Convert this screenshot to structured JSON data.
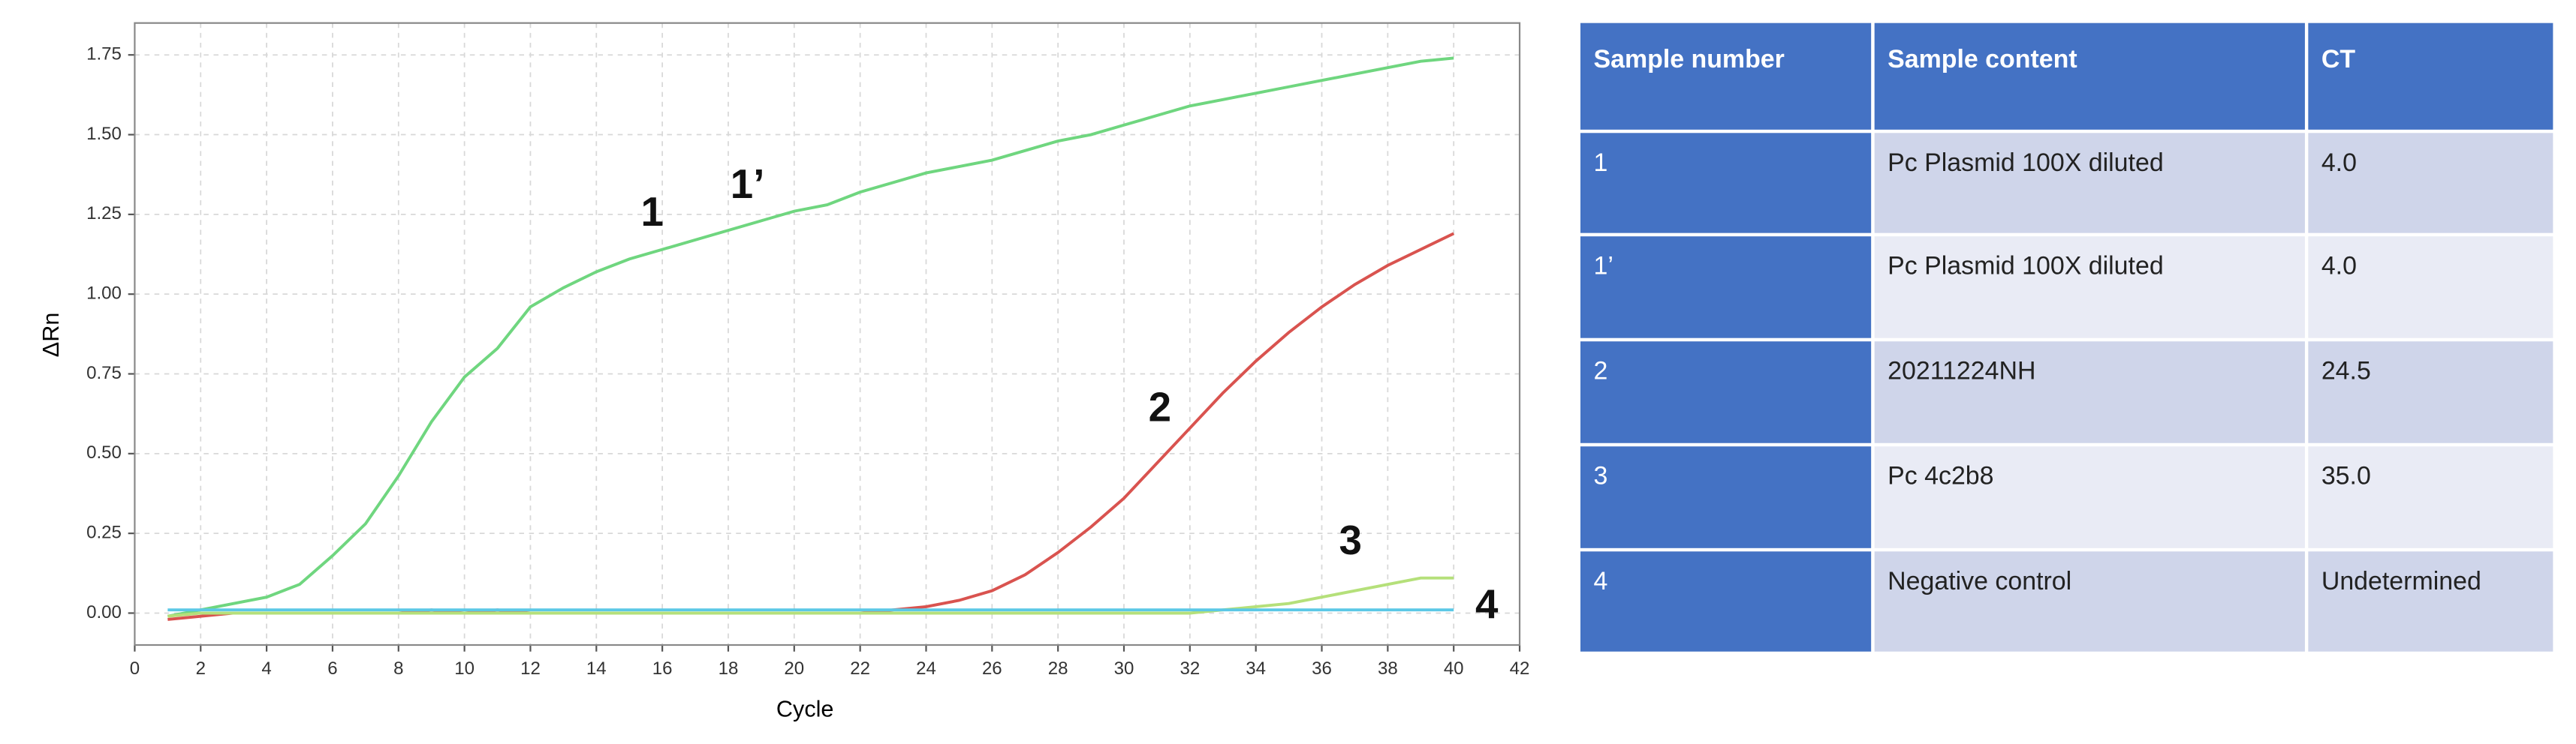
{
  "chart_data": {
    "type": "line",
    "xlabel": "Cycle",
    "ylabel": "ΔRn",
    "x": [
      1,
      2,
      3,
      4,
      5,
      6,
      7,
      8,
      9,
      10,
      11,
      12,
      13,
      14,
      15,
      16,
      17,
      18,
      19,
      20,
      21,
      22,
      23,
      24,
      25,
      26,
      27,
      28,
      29,
      30,
      31,
      32,
      33,
      34,
      35,
      36,
      37,
      38,
      39,
      40
    ],
    "series": [
      {
        "color": "#6fd67f",
        "values": [
          -0.01,
          0.01,
          0.03,
          0.05,
          0.09,
          0.18,
          0.28,
          0.43,
          0.6,
          0.74,
          0.83,
          0.96,
          1.02,
          1.07,
          1.11,
          1.14,
          1.17,
          1.2,
          1.23,
          1.26,
          1.28,
          1.32,
          1.35,
          1.38,
          1.4,
          1.42,
          1.45,
          1.48,
          1.5,
          1.53,
          1.56,
          1.59,
          1.61,
          1.63,
          1.65,
          1.67,
          1.69,
          1.71,
          1.73,
          1.74
        ]
      },
      {
        "color": "#d9534f",
        "values": [
          -0.02,
          -0.01,
          0,
          0,
          0,
          0,
          0,
          0,
          0.01,
          0,
          0.01,
          0,
          0,
          0,
          0,
          0,
          0,
          0,
          0,
          0,
          0,
          0,
          0.01,
          0.02,
          0.04,
          0.07,
          0.12,
          0.19,
          0.27,
          0.36,
          0.47,
          0.58,
          0.69,
          0.79,
          0.88,
          0.96,
          1.03,
          1.09,
          1.14,
          1.19
        ]
      },
      {
        "color": "#b5e07a",
        "values": [
          -0.01,
          0,
          0,
          0,
          0,
          0,
          0,
          0,
          0,
          0,
          0,
          0,
          0,
          0,
          0,
          0,
          0,
          0,
          0,
          0,
          0,
          0,
          0,
          0,
          0,
          0,
          0,
          0,
          0,
          0,
          0,
          0,
          0.01,
          0.02,
          0.03,
          0.05,
          0.07,
          0.09,
          0.11,
          0.11
        ]
      },
      {
        "color": "#5bc8e6",
        "values": [
          0.01,
          0.01,
          0.01,
          0.01,
          0.01,
          0.01,
          0.01,
          0.01,
          0.01,
          0.01,
          0.01,
          0.01,
          0.01,
          0.01,
          0.01,
          0.01,
          0.01,
          0.01,
          0.01,
          0.01,
          0.01,
          0.01,
          0.01,
          0.01,
          0.01,
          0.01,
          0.01,
          0.01,
          0.01,
          0.01,
          0.01,
          0.01,
          0.01,
          0.01,
          0.01,
          0.01,
          0.01,
          0.01,
          0.01,
          0.01
        ]
      }
    ],
    "annotations": [
      "1",
      "1’",
      "2",
      "3",
      "4"
    ],
    "xlim": [
      0,
      42
    ],
    "xticks": [
      0,
      2,
      4,
      6,
      8,
      10,
      12,
      14,
      16,
      18,
      20,
      22,
      24,
      26,
      28,
      30,
      32,
      34,
      36,
      38,
      40,
      42
    ],
    "ylim": [
      -0.1,
      1.85
    ],
    "yticks": [
      {
        "value": 0,
        "label": "0.00"
      },
      0.25,
      {
        "value": 0.5,
        "label": "0.50"
      },
      0.75,
      {
        "value": 1,
        "label": "1.00"
      },
      1.25,
      {
        "value": 1.5,
        "label": "1.50"
      },
      1.75
    ],
    "grid": true
  },
  "table": {
    "header": [
      "Sample number",
      "Sample content",
      "CT"
    ],
    "rows": [
      [
        "1",
        "Pc Plasmid 100X diluted",
        "4.0"
      ],
      [
        "1’",
        "Pc Plasmid 100X diluted",
        "4.0"
      ],
      [
        "2",
        "20211224NH",
        "24.5"
      ],
      [
        "3",
        "Pc 4c2b8",
        "35.0"
      ],
      [
        "4",
        "Negative control",
        "Undetermined"
      ]
    ]
  }
}
